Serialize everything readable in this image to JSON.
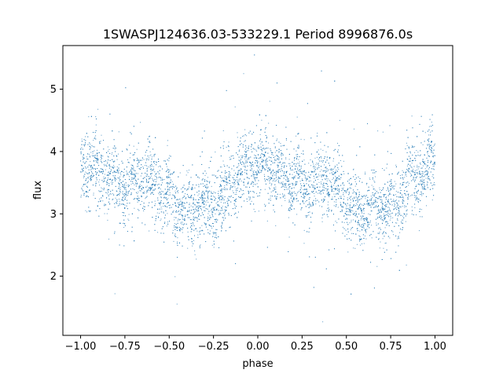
{
  "chart_data": {
    "type": "scatter",
    "title": "1SWASPJ124636.03-533229.1 Period 8996876.0s",
    "xlabel": "phase",
    "ylabel": "flux",
    "xlim": [
      -1.1,
      1.1
    ],
    "ylim": [
      1.05,
      5.7
    ],
    "x_ticks": [
      -1.0,
      -0.75,
      -0.5,
      -0.25,
      0.0,
      0.25,
      0.5,
      0.75,
      1.0
    ],
    "x_tick_labels": [
      "−1.00",
      "−0.75",
      "−0.50",
      "−0.25",
      "0.00",
      "0.25",
      "0.50",
      "0.75",
      "1.00"
    ],
    "y_ticks": [
      2,
      3,
      4,
      5
    ],
    "y_tick_labels": [
      "2",
      "3",
      "4",
      "5"
    ],
    "grid": false,
    "point_color": "#1f77b4",
    "x_range": [
      -1.0,
      1.0
    ],
    "mean_flux_profile": {
      "phase": [
        -1.0,
        -0.875,
        -0.75,
        -0.625,
        -0.5,
        -0.44,
        -0.375,
        -0.25,
        -0.125,
        0.0,
        0.125,
        0.25,
        0.375,
        0.5,
        0.56,
        0.625,
        0.75,
        0.875,
        1.0
      ],
      "flux": [
        3.8,
        3.6,
        3.45,
        3.6,
        3.3,
        3.0,
        3.1,
        3.1,
        3.55,
        3.85,
        3.6,
        3.45,
        3.55,
        3.3,
        3.0,
        3.1,
        3.1,
        3.55,
        3.8
      ]
    }
  }
}
